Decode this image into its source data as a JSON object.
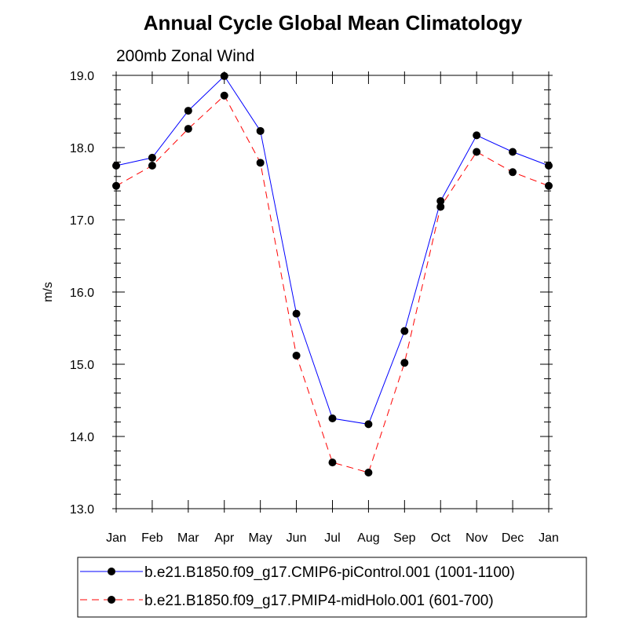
{
  "chart_data": {
    "type": "line",
    "title": "Annual Cycle Global Mean Climatology",
    "subtitle": "200mb Zonal Wind",
    "ylabel": "m/s",
    "xlabel": "",
    "categories": [
      "Jan",
      "Feb",
      "Mar",
      "Apr",
      "May",
      "Jun",
      "Jul",
      "Aug",
      "Sep",
      "Oct",
      "Nov",
      "Dec",
      "Jan"
    ],
    "ylim": [
      13.0,
      19.0
    ],
    "yticks": [
      "13.0",
      "14.0",
      "15.0",
      "16.0",
      "17.0",
      "18.0",
      "19.0"
    ],
    "y_minor_step": 0.2,
    "grid": false,
    "legend_position": "bottom",
    "series": [
      {
        "name": "b.e21.B1850.f09_g17.CMIP6-piControl.001 (1001-1100)",
        "color": "#0000ff",
        "line_style": "solid",
        "marker": "filled-circle",
        "values": [
          17.75,
          17.86,
          18.51,
          18.99,
          18.23,
          15.7,
          14.25,
          14.17,
          15.46,
          17.26,
          18.17,
          17.94,
          17.75
        ]
      },
      {
        "name": "b.e21.B1850.f09_g17.PMIP4-midHolo.001 (601-700)",
        "color": "#ff0000",
        "line_style": "dashed",
        "marker": "filled-circle",
        "values": [
          17.47,
          17.75,
          18.26,
          18.72,
          17.79,
          15.12,
          13.64,
          13.5,
          15.02,
          17.18,
          17.94,
          17.66,
          17.47
        ]
      }
    ]
  }
}
